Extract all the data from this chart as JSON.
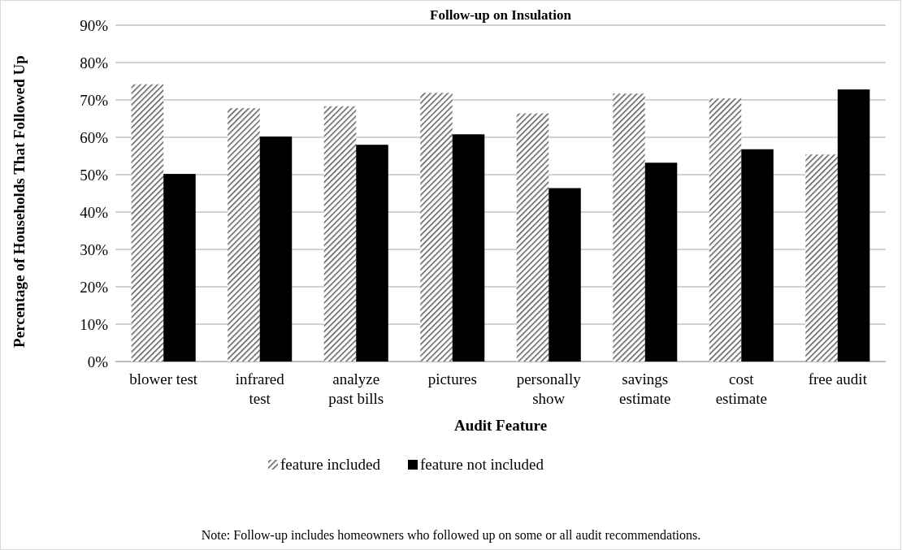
{
  "chart_data": {
    "type": "bar",
    "title": "Follow-up on Insulation",
    "xlabel": "Audit Feature",
    "ylabel": "Percentage of Households That Followed Up",
    "categories": [
      "blower test",
      "infrared test",
      "analyze past bills",
      "pictures",
      "personally show",
      "savings estimate",
      "cost estimate",
      "free audit"
    ],
    "series": [
      {
        "name": "feature included",
        "color": "#595959",
        "values": [
          74.2,
          67.8,
          68.3,
          71.9,
          66.4,
          71.7,
          70.4,
          55.4
        ]
      },
      {
        "name": "feature not included",
        "color": "#000000",
        "values": [
          50.2,
          60.2,
          58.0,
          60.8,
          46.4,
          53.2,
          56.8,
          72.8
        ]
      }
    ],
    "ylim": [
      0,
      90
    ],
    "yticks": [
      {
        "value": 0,
        "label": "0%"
      },
      {
        "value": 10,
        "label": "10%"
      },
      {
        "value": 20,
        "label": "20%"
      },
      {
        "value": 30,
        "label": "30%"
      },
      {
        "value": 40,
        "label": "40%"
      },
      {
        "value": 50,
        "label": "50%"
      },
      {
        "value": 60,
        "label": "60%"
      },
      {
        "value": 70,
        "label": "70%"
      },
      {
        "value": 80,
        "label": "80%"
      },
      {
        "value": 90,
        "label": "90%"
      }
    ],
    "grid": "y",
    "legend": "bottom",
    "annotations": [
      "Note: Follow-up includes homeowners who followed up on some or all audit recommendations."
    ]
  }
}
